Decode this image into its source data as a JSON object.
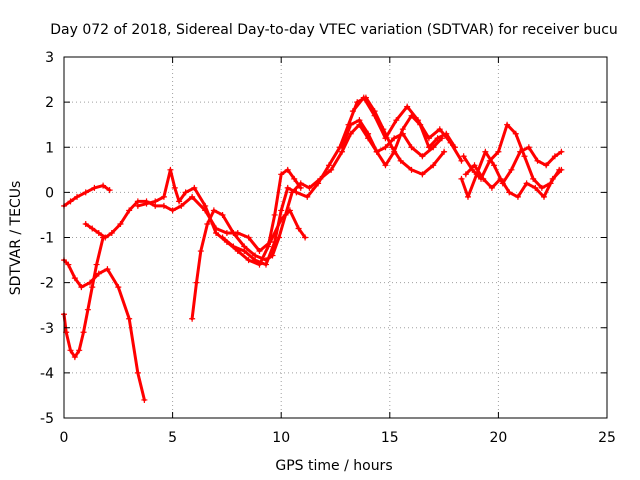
{
  "chart_data": {
    "type": "scatter",
    "title": "Day 072 of 2018, Sidereal Day-to-day VTEC variation (SDTVAR) for receiver bucu",
    "xlabel": "GPS time / hours",
    "ylabel": "SDTVAR / TECUs",
    "xlim": [
      0,
      25
    ],
    "ylim": [
      -5,
      3
    ],
    "xticks": [
      0,
      5,
      10,
      15,
      20,
      25
    ],
    "yticks": [
      -5,
      -4,
      -3,
      -2,
      -1,
      0,
      1,
      2,
      3
    ],
    "grid": true,
    "marker": "+",
    "color": "#ff0000",
    "series": [
      {
        "name": "s1",
        "x": [
          0,
          0.3,
          0.6,
          1.0,
          1.4,
          1.8,
          2.1
        ],
        "y": [
          -0.3,
          -0.2,
          -0.1,
          0,
          0.1,
          0.15,
          0.05
        ]
      },
      {
        "name": "s2",
        "x": [
          0,
          0.2,
          0.5,
          0.8,
          1.2,
          1.6,
          2.0,
          2.5,
          3.0,
          3.4,
          3.7
        ],
        "y": [
          -1.5,
          -1.6,
          -1.9,
          -2.1,
          -2.0,
          -1.8,
          -1.7,
          -2.1,
          -2.8,
          -4.0,
          -4.6
        ]
      },
      {
        "name": "s3",
        "x": [
          0,
          0.1,
          0.3,
          0.5,
          0.7,
          0.9,
          1.1,
          1.3,
          1.5,
          1.8
        ],
        "y": [
          -2.7,
          -3.1,
          -3.5,
          -3.65,
          -3.5,
          -3.1,
          -2.6,
          -2.1,
          -1.6,
          -1.0
        ]
      },
      {
        "name": "s4",
        "x": [
          1.0,
          1.3,
          1.6,
          1.9,
          2.2,
          2.6,
          3.0,
          3.4,
          3.8,
          4.2,
          4.6,
          5.0,
          5.4,
          5.9,
          6.5,
          7.0,
          7.5,
          8.0,
          8.5,
          9.0,
          9.5,
          10.0,
          10.4,
          10.8,
          11.1
        ],
        "y": [
          -0.7,
          -0.8,
          -0.9,
          -1.0,
          -0.9,
          -0.7,
          -0.4,
          -0.2,
          -0.2,
          -0.3,
          -0.3,
          -0.4,
          -0.3,
          -0.1,
          -0.4,
          -0.8,
          -0.9,
          -0.9,
          -1.0,
          -1.3,
          -1.1,
          -0.6,
          -0.4,
          -0.8,
          -1.0
        ]
      },
      {
        "name": "s5",
        "x": [
          3.4,
          3.8,
          4.2,
          4.6,
          4.9,
          5.1,
          5.3,
          5.6,
          6.0,
          6.5,
          7.0,
          7.5,
          8.0,
          8.5,
          9.0,
          9.4,
          9.7,
          10.0,
          10.3,
          10.6,
          10.9
        ],
        "y": [
          -0.3,
          -0.25,
          -0.2,
          -0.1,
          0.5,
          0.1,
          -0.2,
          0.0,
          0.1,
          -0.3,
          -0.9,
          -1.1,
          -1.3,
          -1.5,
          -1.6,
          -1.2,
          -0.5,
          0.4,
          0.5,
          0.3,
          0.1
        ]
      },
      {
        "name": "s6",
        "x": [
          5.9,
          6.1,
          6.3,
          6.6,
          6.9,
          7.3,
          7.8,
          8.3,
          8.8,
          9.3,
          9.6,
          9.9,
          10.2,
          10.5,
          10.9,
          11.3,
          11.8,
          12.3,
          12.8,
          13.2,
          13.6,
          14.0,
          14.4,
          14.8,
          15.2,
          15.6,
          16.0,
          16.5,
          17.0,
          17.4
        ],
        "y": [
          -2.8,
          -2.0,
          -1.3,
          -0.7,
          -0.4,
          -0.5,
          -0.9,
          -1.2,
          -1.4,
          -1.5,
          -1.4,
          -1.0,
          -0.5,
          0.0,
          0.2,
          0.1,
          0.3,
          0.5,
          0.9,
          1.3,
          1.5,
          1.2,
          0.9,
          1.0,
          1.2,
          1.3,
          1.0,
          0.8,
          1.0,
          1.2
        ]
      },
      {
        "name": "s7",
        "x": [
          7.3,
          7.8,
          8.3,
          8.8,
          9.3,
          9.7,
          10.0,
          10.3,
          10.7,
          11.2,
          11.7,
          12.2,
          12.7,
          13.1,
          13.5,
          13.9,
          14.3,
          14.7,
          15.1,
          15.5,
          16.0,
          16.5,
          17.0,
          17.5
        ],
        "y": [
          -1.0,
          -1.2,
          -1.3,
          -1.5,
          -1.6,
          -1.1,
          -0.4,
          0.1,
          0.0,
          -0.1,
          0.2,
          0.6,
          1.0,
          1.5,
          2.0,
          2.1,
          1.8,
          1.4,
          1.0,
          0.7,
          0.5,
          0.4,
          0.6,
          0.9
        ]
      },
      {
        "name": "s8",
        "x": [
          12.8,
          13.2,
          13.6,
          14.0,
          14.4,
          14.8,
          15.2,
          15.6,
          16.0,
          16.4,
          16.8,
          17.2,
          17.6,
          18.0
        ],
        "y": [
          1.0,
          1.5,
          1.6,
          1.3,
          0.9,
          0.6,
          0.9,
          1.4,
          1.7,
          1.5,
          1.0,
          1.2,
          1.3,
          1.0
        ]
      },
      {
        "name": "s9",
        "x": [
          13.3,
          13.8,
          14.3,
          14.8,
          15.3,
          15.8,
          16.3,
          16.8,
          17.3,
          17.8,
          18.3
        ],
        "y": [
          1.8,
          2.1,
          1.7,
          1.2,
          1.6,
          1.9,
          1.6,
          1.2,
          1.4,
          1.1,
          0.7
        ]
      },
      {
        "name": "s10",
        "x": [
          18.3,
          18.6,
          19.0,
          19.4,
          19.8,
          20.2,
          20.6,
          21.0,
          21.4,
          21.8,
          22.2,
          22.6,
          22.9
        ],
        "y": [
          0.3,
          -0.1,
          0.4,
          0.9,
          0.6,
          0.2,
          0.5,
          0.9,
          1.0,
          0.7,
          0.6,
          0.8,
          0.9
        ]
      },
      {
        "name": "s11",
        "x": [
          18.4,
          18.8,
          19.2,
          19.6,
          20.0,
          20.4,
          20.8,
          21.2,
          21.6,
          22.0,
          22.4,
          22.8
        ],
        "y": [
          0.8,
          0.5,
          0.3,
          0.7,
          0.9,
          1.5,
          1.3,
          0.8,
          0.3,
          0.1,
          0.2,
          0.5
        ]
      },
      {
        "name": "s12",
        "x": [
          18.5,
          18.9,
          19.3,
          19.7,
          20.1,
          20.5,
          20.9,
          21.3,
          21.7,
          22.1,
          22.5,
          22.9
        ],
        "y": [
          0.4,
          0.6,
          0.3,
          0.1,
          0.3,
          0.0,
          -0.1,
          0.2,
          0.1,
          -0.1,
          0.3,
          0.5
        ]
      }
    ]
  }
}
